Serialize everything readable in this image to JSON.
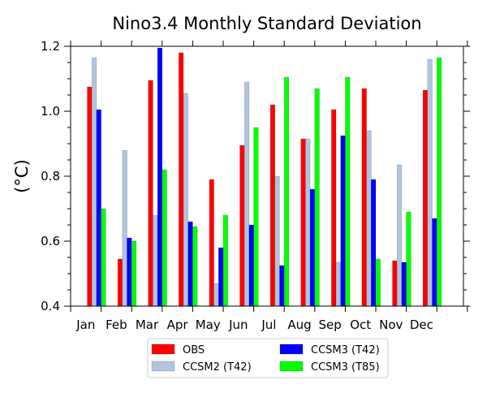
{
  "chart_data": {
    "type": "bar",
    "title": "Nino3.4 Monthly Standard Deviation",
    "xlabel": "",
    "ylabel": "(°C)",
    "ylim": [
      0.4,
      1.2
    ],
    "yticks": [
      "0.4",
      "0.6",
      "0.8",
      "1.0",
      "1.2"
    ],
    "categories": [
      "Jan",
      "Feb",
      "Mar",
      "Apr",
      "May",
      "Jun",
      "Jul",
      "Aug",
      "Sep",
      "Oct",
      "Nov",
      "Dec"
    ],
    "series": [
      {
        "name": "OBS",
        "color": "#ff0000",
        "values": [
          1.075,
          0.545,
          1.095,
          1.18,
          0.79,
          0.895,
          1.02,
          0.915,
          1.005,
          1.07,
          0.54,
          1.065
        ]
      },
      {
        "name": "CCSM2 (T42)",
        "color": "#b0c4de",
        "values": [
          1.165,
          0.88,
          0.68,
          1.055,
          0.47,
          1.09,
          0.8,
          0.915,
          0.535,
          0.94,
          0.835,
          1.16
        ]
      },
      {
        "name": "CCSM3 (T42)",
        "color": "#0000ff",
        "values": [
          1.005,
          0.61,
          1.195,
          0.66,
          0.58,
          0.65,
          0.525,
          0.76,
          0.925,
          0.79,
          0.535,
          0.67
        ]
      },
      {
        "name": "CCSM3 (T85)",
        "color": "#00ff00",
        "values": [
          0.7,
          0.6,
          0.82,
          0.645,
          0.68,
          0.95,
          1.105,
          1.07,
          1.105,
          0.545,
          0.69,
          1.165
        ]
      }
    ],
    "legend": {
      "placement": "bottom-center",
      "columns": 2
    },
    "grid": false
  }
}
